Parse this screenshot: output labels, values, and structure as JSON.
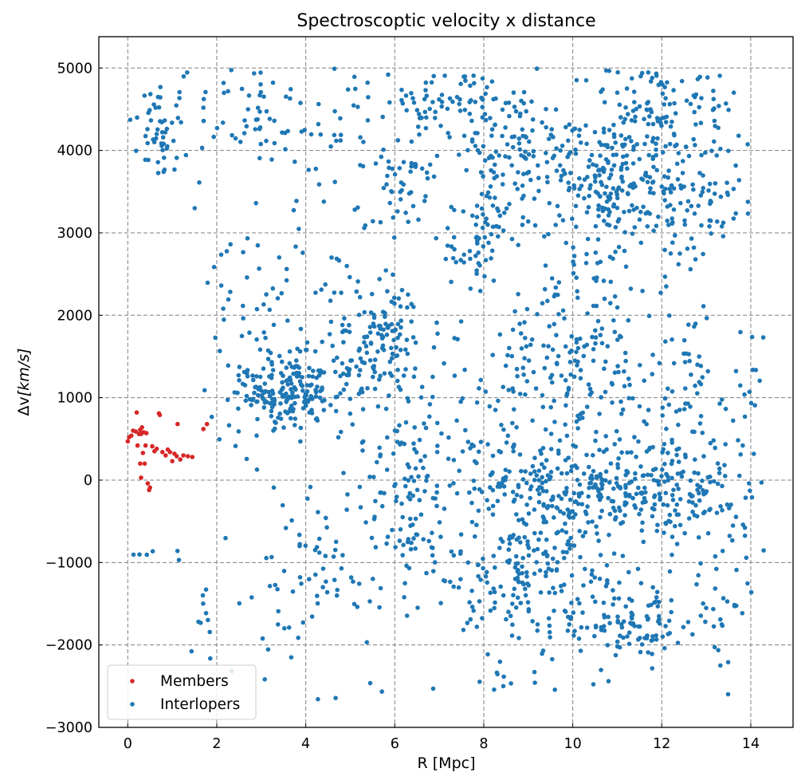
{
  "chart_data": {
    "type": "scatter",
    "title": "Spectroscoptic velocity x distance",
    "xlabel": "R [Mpc]",
    "ylabel": "Δv[km/s]",
    "xlim": [
      -0.65,
      14.95
    ],
    "ylim": [
      -3000,
      5380
    ],
    "xticks": [
      "0",
      "2",
      "4",
      "6",
      "8",
      "10",
      "12",
      "14"
    ],
    "yticks": [
      "−3000",
      "−2000",
      "−1000",
      "0",
      "1000",
      "2000",
      "3000",
      "4000",
      "5000"
    ],
    "grid": true,
    "grid_style": "dashed",
    "legend_position": "lower-left",
    "series": [
      {
        "name": "Members",
        "color": "#d62728",
        "points": [
          [
            0.0,
            470
          ],
          [
            0.03,
            520
          ],
          [
            0.08,
            540
          ],
          [
            0.12,
            600
          ],
          [
            0.18,
            590
          ],
          [
            0.2,
            820
          ],
          [
            0.22,
            420
          ],
          [
            0.25,
            560
          ],
          [
            0.28,
            610
          ],
          [
            0.3,
            560
          ],
          [
            0.32,
            640
          ],
          [
            0.34,
            330
          ],
          [
            0.36,
            580
          ],
          [
            0.38,
            200
          ],
          [
            0.4,
            420
          ],
          [
            0.42,
            570
          ],
          [
            0.45,
            -40
          ],
          [
            0.48,
            -120
          ],
          [
            0.5,
            -90
          ],
          [
            0.55,
            410
          ],
          [
            0.6,
            350
          ],
          [
            0.65,
            380
          ],
          [
            0.7,
            810
          ],
          [
            0.72,
            790
          ],
          [
            0.78,
            340
          ],
          [
            0.85,
            300
          ],
          [
            0.9,
            370
          ],
          [
            0.95,
            340
          ],
          [
            1.0,
            230
          ],
          [
            1.05,
            320
          ],
          [
            1.1,
            290
          ],
          [
            1.12,
            680
          ],
          [
            1.18,
            250
          ],
          [
            1.25,
            300
          ],
          [
            1.35,
            290
          ],
          [
            1.45,
            280
          ],
          [
            1.7,
            620
          ],
          [
            1.78,
            680
          ],
          [
            0.3,
            30
          ],
          [
            0.28,
            200
          ]
        ]
      },
      {
        "name": "Interlopers",
        "color": "#1f77b4",
        "clusters": [
          {
            "cx": 0.7,
            "cy": 4250,
            "sx": 0.35,
            "sy": 300,
            "n": 40
          },
          {
            "cx": 1.4,
            "cy": 4100,
            "sx": 0.5,
            "sy": 500,
            "n": 20
          },
          {
            "cx": 2.8,
            "cy": 4500,
            "sx": 0.6,
            "sy": 350,
            "n": 45
          },
          {
            "cx": 4.7,
            "cy": 4100,
            "sx": 0.8,
            "sy": 600,
            "n": 45
          },
          {
            "cx": 3.6,
            "cy": 1050,
            "sx": 0.45,
            "sy": 220,
            "n": 140
          },
          {
            "cx": 3.2,
            "cy": 1300,
            "sx": 0.7,
            "sy": 450,
            "n": 80
          },
          {
            "cx": 5.2,
            "cy": 1400,
            "sx": 0.5,
            "sy": 350,
            "n": 90
          },
          {
            "cx": 6.0,
            "cy": 1700,
            "sx": 0.5,
            "sy": 400,
            "n": 70
          },
          {
            "cx": 6.2,
            "cy": 3600,
            "sx": 0.25,
            "sy": 250,
            "n": 40
          },
          {
            "cx": 7.1,
            "cy": 4600,
            "sx": 0.6,
            "sy": 200,
            "n": 60
          },
          {
            "cx": 7.9,
            "cy": 2900,
            "sx": 0.3,
            "sy": 250,
            "n": 50
          },
          {
            "cx": 8.6,
            "cy": 3900,
            "sx": 0.8,
            "sy": 500,
            "n": 150
          },
          {
            "cx": 10.7,
            "cy": 3700,
            "sx": 0.5,
            "sy": 350,
            "n": 130
          },
          {
            "cx": 11.5,
            "cy": 4400,
            "sx": 0.6,
            "sy": 400,
            "n": 90
          },
          {
            "cx": 12.8,
            "cy": 3900,
            "sx": 0.7,
            "sy": 600,
            "n": 120
          },
          {
            "cx": 11.7,
            "cy": 3200,
            "sx": 1.0,
            "sy": 400,
            "n": 60
          },
          {
            "cx": 9.9,
            "cy": -100,
            "sx": 1.1,
            "sy": 350,
            "n": 260
          },
          {
            "cx": 12.4,
            "cy": -150,
            "sx": 0.8,
            "sy": 350,
            "n": 170
          },
          {
            "cx": 9.0,
            "cy": -900,
            "sx": 0.7,
            "sy": 400,
            "n": 80
          },
          {
            "cx": 10.5,
            "cy": -1600,
            "sx": 0.9,
            "sy": 300,
            "n": 90
          },
          {
            "cx": 11.5,
            "cy": -1800,
            "sx": 0.4,
            "sy": 250,
            "n": 40
          },
          {
            "cx": 8.5,
            "cy": -1400,
            "sx": 0.5,
            "sy": 400,
            "n": 50
          },
          {
            "cx": 6.8,
            "cy": 200,
            "sx": 0.8,
            "sy": 450,
            "n": 90
          },
          {
            "cx": 6.5,
            "cy": -700,
            "sx": 0.7,
            "sy": 500,
            "n": 60
          },
          {
            "cx": 10.0,
            "cy": 1300,
            "sx": 0.9,
            "sy": 400,
            "n": 110
          },
          {
            "cx": 12.5,
            "cy": 1200,
            "sx": 0.8,
            "sy": 500,
            "n": 70
          },
          {
            "cx": 10.4,
            "cy": 2400,
            "sx": 0.6,
            "sy": 350,
            "n": 40
          },
          {
            "cx": 8.3,
            "cy": 1500,
            "sx": 0.8,
            "sy": 500,
            "n": 50
          },
          {
            "cx": 4.5,
            "cy": -1000,
            "sx": 0.8,
            "sy": 600,
            "n": 45
          },
          {
            "cx": 3.5,
            "cy": -1500,
            "sx": 0.6,
            "sy": 500,
            "n": 25
          },
          {
            "cx": 1.8,
            "cy": -1700,
            "sx": 0.3,
            "sy": 350,
            "n": 12
          },
          {
            "cx": 0.7,
            "cy": -900,
            "sx": 0.4,
            "sy": 40,
            "n": 7
          },
          {
            "cx": 13.3,
            "cy": -1600,
            "sx": 0.5,
            "sy": 400,
            "n": 40
          },
          {
            "cx": 14.0,
            "cy": 1000,
            "sx": 0.15,
            "sy": 800,
            "n": 15
          },
          {
            "cx": 7.0,
            "cy": -2500,
            "sx": 2.0,
            "sy": 100,
            "n": 15
          },
          {
            "cx": 4.4,
            "cy": 2500,
            "sx": 1.8,
            "sy": 300,
            "n": 30
          },
          {
            "cx": 2.5,
            "cy": 2600,
            "sx": 0.5,
            "sy": 500,
            "n": 12
          }
        ]
      }
    ]
  }
}
